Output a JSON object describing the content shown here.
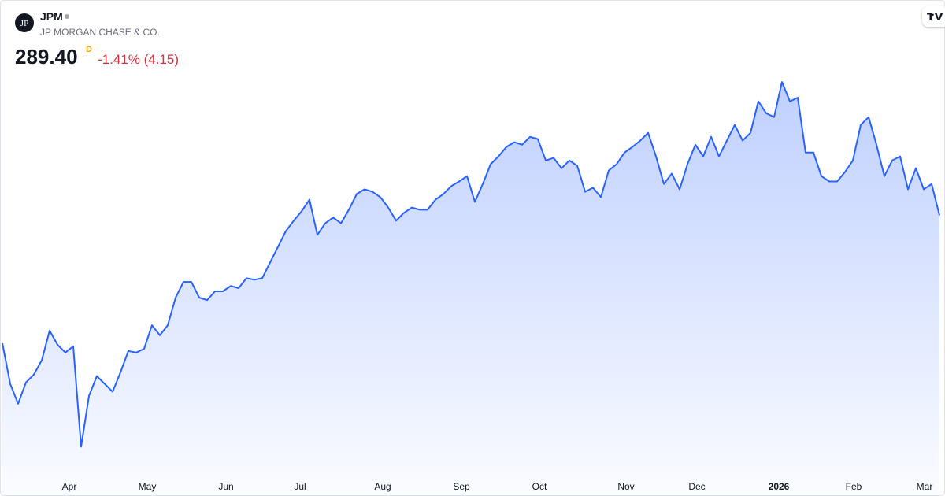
{
  "header": {
    "logo": "JP",
    "symbol": "JPM",
    "name": "JP MORGAN CHASE & CO.",
    "price": "289.40",
    "interval": "D",
    "change": "-1.41% (4.15)"
  },
  "chart_data": {
    "type": "area",
    "color": "#2962ff",
    "values": [
      248.7,
      235.7,
      229.4,
      236.2,
      238.7,
      243.2,
      252.7,
      248.2,
      245.7,
      247.7,
      215.7,
      231.9,
      238.2,
      235.7,
      233.2,
      239.4,
      246.2,
      245.7,
      246.9,
      254.4,
      251.2,
      254.4,
      263.2,
      268.2,
      268.2,
      263.2,
      262.4,
      265.2,
      265.2,
      266.9,
      266.2,
      269.4,
      268.9,
      269.4,
      274.4,
      279.4,
      284.4,
      287.7,
      290.7,
      294.4,
      283.2,
      286.9,
      288.7,
      286.9,
      291.2,
      296.2,
      297.7,
      296.9,
      295.2,
      291.9,
      287.7,
      290.2,
      291.9,
      291.2,
      291.2,
      294.4,
      296.2,
      298.7,
      300.2,
      301.9,
      293.7,
      299.4,
      305.7,
      308.2,
      311.2,
      312.7,
      311.9,
      314.4,
      313.7,
      306.9,
      307.7,
      304.4,
      306.9,
      305.2,
      296.9,
      298.2,
      295.2,
      303.7,
      305.7,
      309.4,
      311.2,
      313.2,
      315.7,
      308.2,
      299.4,
      302.7,
      297.7,
      305.7,
      311.9,
      308.2,
      314.4,
      308.2,
      313.2,
      318.2,
      313.2,
      315.7,
      325.7,
      321.9,
      320.7,
      331.9,
      325.7,
      326.9,
      309.4,
      309.4,
      301.9,
      300.2,
      300.2,
      303.2,
      306.9,
      318.2,
      320.7,
      311.9,
      301.9,
      306.9,
      308.2,
      297.7,
      304.4,
      297.7,
      299.4,
      289.4
    ],
    "xlim": [
      0,
      119
    ],
    "ylim": [
      200,
      358
    ],
    "xticks": [
      {
        "value": 8.5,
        "label": "Apr"
      },
      {
        "value": 18.4,
        "label": "May"
      },
      {
        "value": 28.4,
        "label": "Jun"
      },
      {
        "value": 37.8,
        "label": "Jul"
      },
      {
        "value": 48.3,
        "label": "Aug"
      },
      {
        "value": 58.3,
        "label": "Sep"
      },
      {
        "value": 68.2,
        "label": "Oct"
      },
      {
        "value": 79.2,
        "label": "Nov"
      },
      {
        "value": 88.2,
        "label": "Dec"
      },
      {
        "value": 98.6,
        "label": "2026"
      },
      {
        "value": 108.1,
        "label": "Feb"
      },
      {
        "value": 117.1,
        "label": "Mar"
      }
    ]
  }
}
